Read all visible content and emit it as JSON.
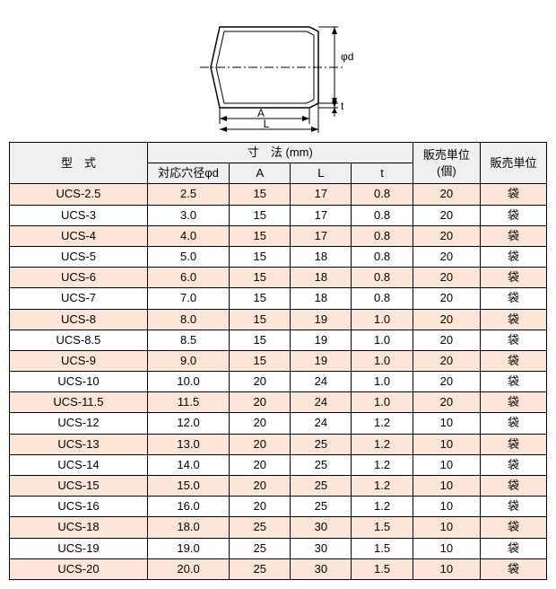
{
  "diagram": {
    "labels": {
      "phi_d": "φd",
      "t": "t",
      "A": "A",
      "L": "L"
    },
    "stroke": "#000000",
    "fill": "#ffffff"
  },
  "table": {
    "headers": {
      "model": "型　式",
      "dim_group": "寸　法 (mm)",
      "dim_phid": "対応穴径φd",
      "dim_A": "A",
      "dim_L": "L",
      "dim_t": "t",
      "sales_qty": "販売単位\n(個)",
      "sales_unit": "販売単位"
    },
    "colors": {
      "header_bg": "#efefef",
      "row_shaded": "#fbe5d6",
      "row_plain": "#ffffff",
      "border": "#000000"
    },
    "rows": [
      {
        "model": "UCS-2.5",
        "phid": "2.5",
        "A": "15",
        "L": "17",
        "t": "0.8",
        "qty": "20",
        "unit": "袋",
        "shaded": true
      },
      {
        "model": "UCS-3",
        "phid": "3.0",
        "A": "15",
        "L": "17",
        "t": "0.8",
        "qty": "20",
        "unit": "袋",
        "shaded": false
      },
      {
        "model": "UCS-4",
        "phid": "4.0",
        "A": "15",
        "L": "17",
        "t": "0.8",
        "qty": "20",
        "unit": "袋",
        "shaded": true
      },
      {
        "model": "UCS-5",
        "phid": "5.0",
        "A": "15",
        "L": "18",
        "t": "0.8",
        "qty": "20",
        "unit": "袋",
        "shaded": false
      },
      {
        "model": "UCS-6",
        "phid": "6.0",
        "A": "15",
        "L": "18",
        "t": "0.8",
        "qty": "20",
        "unit": "袋",
        "shaded": true
      },
      {
        "model": "UCS-7",
        "phid": "7.0",
        "A": "15",
        "L": "18",
        "t": "0.8",
        "qty": "20",
        "unit": "袋",
        "shaded": false
      },
      {
        "model": "UCS-8",
        "phid": "8.0",
        "A": "15",
        "L": "19",
        "t": "1.0",
        "qty": "20",
        "unit": "袋",
        "shaded": true
      },
      {
        "model": "UCS-8.5",
        "phid": "8.5",
        "A": "15",
        "L": "19",
        "t": "1.0",
        "qty": "20",
        "unit": "袋",
        "shaded": false
      },
      {
        "model": "UCS-9",
        "phid": "9.0",
        "A": "15",
        "L": "19",
        "t": "1.0",
        "qty": "20",
        "unit": "袋",
        "shaded": true
      },
      {
        "model": "UCS-10",
        "phid": "10.0",
        "A": "20",
        "L": "24",
        "t": "1.0",
        "qty": "20",
        "unit": "袋",
        "shaded": false
      },
      {
        "model": "UCS-11.5",
        "phid": "11.5",
        "A": "20",
        "L": "24",
        "t": "1.0",
        "qty": "20",
        "unit": "袋",
        "shaded": true
      },
      {
        "model": "UCS-12",
        "phid": "12.0",
        "A": "20",
        "L": "24",
        "t": "1.2",
        "qty": "10",
        "unit": "袋",
        "shaded": false
      },
      {
        "model": "UCS-13",
        "phid": "13.0",
        "A": "20",
        "L": "25",
        "t": "1.2",
        "qty": "10",
        "unit": "袋",
        "shaded": true
      },
      {
        "model": "UCS-14",
        "phid": "14.0",
        "A": "20",
        "L": "25",
        "t": "1.2",
        "qty": "10",
        "unit": "袋",
        "shaded": false
      },
      {
        "model": "UCS-15",
        "phid": "15.0",
        "A": "20",
        "L": "25",
        "t": "1.2",
        "qty": "10",
        "unit": "袋",
        "shaded": true
      },
      {
        "model": "UCS-16",
        "phid": "16.0",
        "A": "20",
        "L": "25",
        "t": "1.2",
        "qty": "10",
        "unit": "袋",
        "shaded": false
      },
      {
        "model": "UCS-18",
        "phid": "18.0",
        "A": "25",
        "L": "30",
        "t": "1.5",
        "qty": "10",
        "unit": "袋",
        "shaded": true
      },
      {
        "model": "UCS-19",
        "phid": "19.0",
        "A": "25",
        "L": "30",
        "t": "1.5",
        "qty": "10",
        "unit": "袋",
        "shaded": false
      },
      {
        "model": "UCS-20",
        "phid": "20.0",
        "A": "25",
        "L": "30",
        "t": "1.5",
        "qty": "10",
        "unit": "袋",
        "shaded": true
      }
    ]
  }
}
